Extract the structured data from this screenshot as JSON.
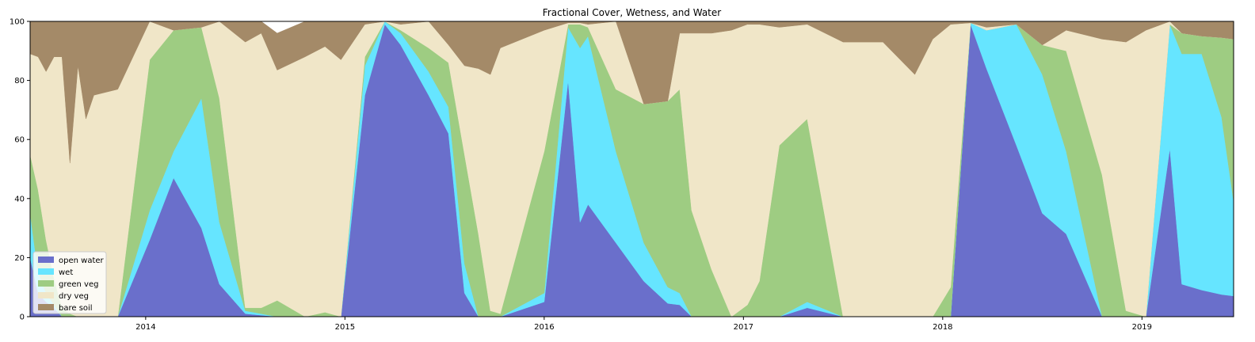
{
  "chart_data": {
    "type": "area",
    "stacked": true,
    "title": "Fractional Cover, Wetness, and Water",
    "xlabel": "",
    "ylabel": "",
    "xlim": [
      2013.42,
      2019.46
    ],
    "ylim": [
      0,
      100
    ],
    "x_ticks": [
      2014,
      2015,
      2016,
      2017,
      2018,
      2019
    ],
    "x_tick_labels": [
      "2014",
      "2015",
      "2016",
      "2017",
      "2018",
      "2019"
    ],
    "y_ticks": [
      0,
      20,
      40,
      60,
      80,
      100
    ],
    "y_tick_labels": [
      "0",
      "20",
      "40",
      "60",
      "80",
      "100"
    ],
    "grid": false,
    "legend_position": "lower-left",
    "x": [
      2013.42,
      2013.46,
      2013.5,
      2013.54,
      2013.58,
      2013.62,
      2013.66,
      2013.7,
      2013.74,
      2013.86,
      2014.02,
      2014.14,
      2014.28,
      2014.37,
      2014.5,
      2014.58,
      2014.66,
      2014.8,
      2014.9,
      2014.98,
      2015.1,
      2015.2,
      2015.28,
      2015.42,
      2015.52,
      2015.6,
      2015.67,
      2015.73,
      2015.78,
      2016.0,
      2016.12,
      2016.18,
      2016.22,
      2016.36,
      2016.5,
      2016.62,
      2016.68,
      2016.74,
      2016.84,
      2016.94,
      2017.02,
      2017.08,
      2017.18,
      2017.32,
      2017.5,
      2017.7,
      2017.86,
      2017.95,
      2018.04,
      2018.14,
      2018.22,
      2018.37,
      2018.5,
      2018.62,
      2018.8,
      2018.92,
      2019.02,
      2019.14,
      2019.2,
      2019.3,
      2019.4,
      2019.46
    ],
    "series": [
      {
        "name": "open water",
        "color": "#6a6fcb",
        "values": [
          20,
          8,
          5,
          3,
          0,
          0,
          0,
          0,
          0,
          0,
          26,
          47,
          30,
          11,
          1,
          0.5,
          0,
          0,
          0,
          0,
          75,
          99,
          92,
          75,
          62,
          8,
          0,
          0,
          0,
          5,
          80,
          32,
          38,
          25,
          12,
          4.5,
          4,
          0,
          0,
          0,
          0,
          0,
          0,
          3,
          0,
          0,
          0,
          0,
          0,
          99,
          84,
          58,
          35,
          28,
          0,
          0,
          0,
          57,
          11,
          9,
          7.5,
          7
        ]
      },
      {
        "name": "wet",
        "color": "#66e5ff",
        "values": [
          15,
          7,
          3,
          1,
          0,
          0,
          0,
          0,
          0,
          0,
          10,
          9,
          44,
          21,
          1,
          0.5,
          0,
          0,
          0,
          0,
          10,
          1,
          4,
          8,
          9,
          10,
          0,
          0,
          0,
          3,
          18,
          59,
          57,
          31,
          13,
          5.5,
          4,
          0,
          0,
          0,
          0,
          0,
          0,
          2,
          0,
          0,
          0,
          0,
          0,
          0.5,
          13,
          41,
          47,
          28,
          0,
          0,
          0,
          42,
          78,
          80,
          60,
          32
        ]
      },
      {
        "name": "green veg",
        "color": "#9ecc82",
        "values": [
          20,
          28,
          18,
          9,
          3,
          1,
          0,
          0,
          0,
          0,
          51,
          41,
          24,
          42,
          1,
          2,
          5.5,
          0,
          1.5,
          0,
          3,
          0,
          1,
          8,
          15,
          37,
          28,
          2,
          1,
          48,
          1,
          8,
          3,
          21,
          47,
          63,
          69,
          36,
          16,
          0,
          4,
          12,
          58,
          62,
          0,
          0,
          0,
          0,
          10,
          0,
          0,
          0,
          10,
          34,
          48,
          2,
          0,
          0,
          7,
          6,
          27,
          55
        ]
      },
      {
        "name": "dry veg",
        "color": "#f0e6c8",
        "values": [
          34,
          45,
          57,
          75,
          85,
          51,
          85,
          67,
          75,
          77,
          13,
          0,
          0,
          26,
          90,
          93,
          78,
          88,
          90,
          87,
          11,
          0,
          2,
          9,
          6,
          30,
          56,
          80,
          90,
          41,
          0.5,
          0.5,
          1,
          23,
          0,
          0,
          19,
          60,
          80,
          97,
          95,
          87,
          40,
          32,
          93,
          93,
          82,
          94,
          89,
          0,
          1,
          0,
          0,
          7,
          46,
          91,
          97,
          1,
          0,
          0,
          0,
          0
        ]
      },
      {
        "name": "bare soil",
        "color": "#a48a68",
        "values": [
          11,
          12,
          17,
          12,
          12,
          48,
          15,
          33,
          25,
          23,
          0,
          3,
          2,
          0,
          7,
          4,
          12.5,
          12,
          8.5,
          13,
          1,
          0,
          1,
          0,
          8,
          15,
          16,
          18,
          9,
          3,
          0.5,
          0.5,
          1,
          0,
          28,
          27.5,
          4,
          4,
          4,
          3,
          1,
          1,
          2,
          1,
          7,
          7,
          18,
          6,
          1,
          0.5,
          2,
          1,
          8,
          3,
          6,
          7,
          3,
          0,
          4,
          5,
          5.5,
          6
        ]
      }
    ]
  }
}
